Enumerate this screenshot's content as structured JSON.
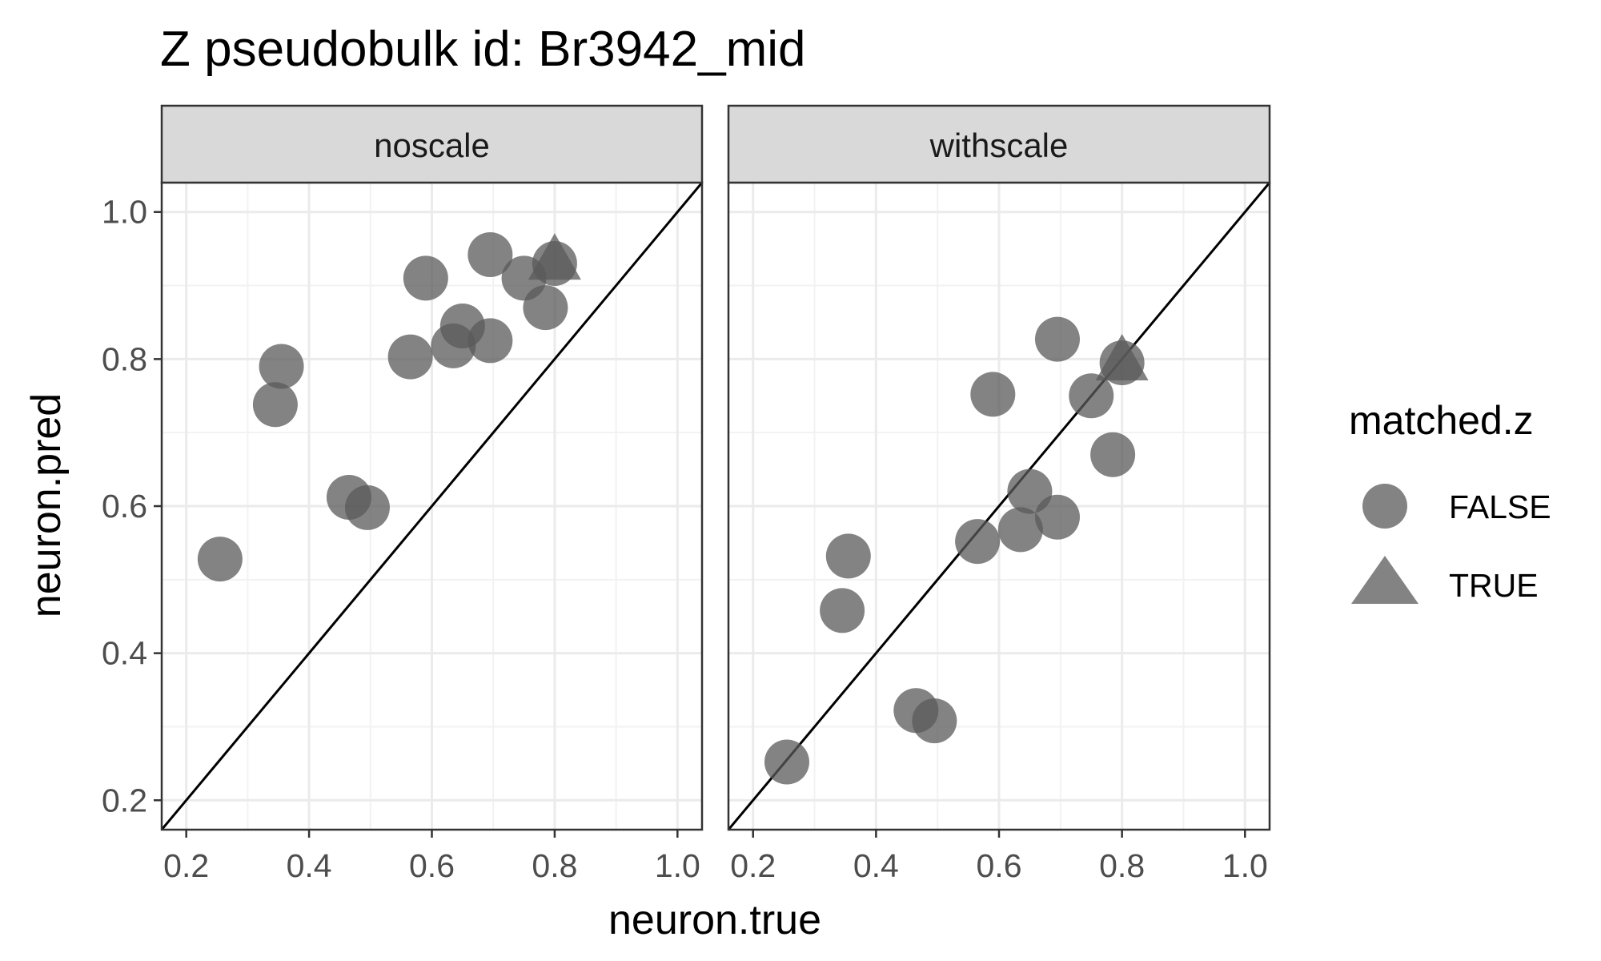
{
  "chart_data": {
    "type": "scatter",
    "title": "Z pseudobulk id: Br3942_mid",
    "xlabel": "neuron.true",
    "ylabel": "neuron.pred",
    "xlim": [
      0.16,
      1.04
    ],
    "ylim": [
      0.16,
      1.04
    ],
    "xticks": [
      0.2,
      0.4,
      0.6,
      0.8,
      1.0
    ],
    "yticks": [
      0.2,
      0.4,
      0.6,
      0.8,
      1.0
    ],
    "tick_labels": [
      "0.2",
      "0.4",
      "0.6",
      "0.8",
      "1.0"
    ],
    "grid": true,
    "reference_line": "y = x",
    "point_color": "#595959",
    "point_opacity": 0.75,
    "legend": {
      "title": "matched.z",
      "placement": "right",
      "entries": [
        {
          "label": "FALSE",
          "shape": "circle"
        },
        {
          "label": "TRUE",
          "shape": "triangle"
        }
      ]
    },
    "panels": [
      {
        "label": "noscale",
        "points": [
          {
            "x": 0.255,
            "y": 0.528,
            "matched": false
          },
          {
            "x": 0.345,
            "y": 0.738,
            "matched": false
          },
          {
            "x": 0.355,
            "y": 0.79,
            "matched": false
          },
          {
            "x": 0.465,
            "y": 0.612,
            "matched": false
          },
          {
            "x": 0.495,
            "y": 0.598,
            "matched": false
          },
          {
            "x": 0.565,
            "y": 0.803,
            "matched": false
          },
          {
            "x": 0.59,
            "y": 0.91,
            "matched": false
          },
          {
            "x": 0.635,
            "y": 0.818,
            "matched": false
          },
          {
            "x": 0.65,
            "y": 0.845,
            "matched": false
          },
          {
            "x": 0.695,
            "y": 0.825,
            "matched": false
          },
          {
            "x": 0.695,
            "y": 0.942,
            "matched": false
          },
          {
            "x": 0.75,
            "y": 0.91,
            "matched": false
          },
          {
            "x": 0.785,
            "y": 0.87,
            "matched": false
          },
          {
            "x": 0.8,
            "y": 0.93,
            "matched": false
          },
          {
            "x": 0.8,
            "y": 0.932,
            "matched": true
          }
        ]
      },
      {
        "label": "withscale",
        "points": [
          {
            "x": 0.255,
            "y": 0.252,
            "matched": false
          },
          {
            "x": 0.345,
            "y": 0.458,
            "matched": false
          },
          {
            "x": 0.355,
            "y": 0.532,
            "matched": false
          },
          {
            "x": 0.465,
            "y": 0.322,
            "matched": false
          },
          {
            "x": 0.495,
            "y": 0.308,
            "matched": false
          },
          {
            "x": 0.565,
            "y": 0.552,
            "matched": false
          },
          {
            "x": 0.59,
            "y": 0.752,
            "matched": false
          },
          {
            "x": 0.635,
            "y": 0.568,
            "matched": false
          },
          {
            "x": 0.65,
            "y": 0.62,
            "matched": false
          },
          {
            "x": 0.695,
            "y": 0.585,
            "matched": false
          },
          {
            "x": 0.695,
            "y": 0.827,
            "matched": false
          },
          {
            "x": 0.75,
            "y": 0.75,
            "matched": false
          },
          {
            "x": 0.785,
            "y": 0.67,
            "matched": false
          },
          {
            "x": 0.8,
            "y": 0.795,
            "matched": false
          },
          {
            "x": 0.8,
            "y": 0.795,
            "matched": true
          }
        ]
      }
    ]
  }
}
